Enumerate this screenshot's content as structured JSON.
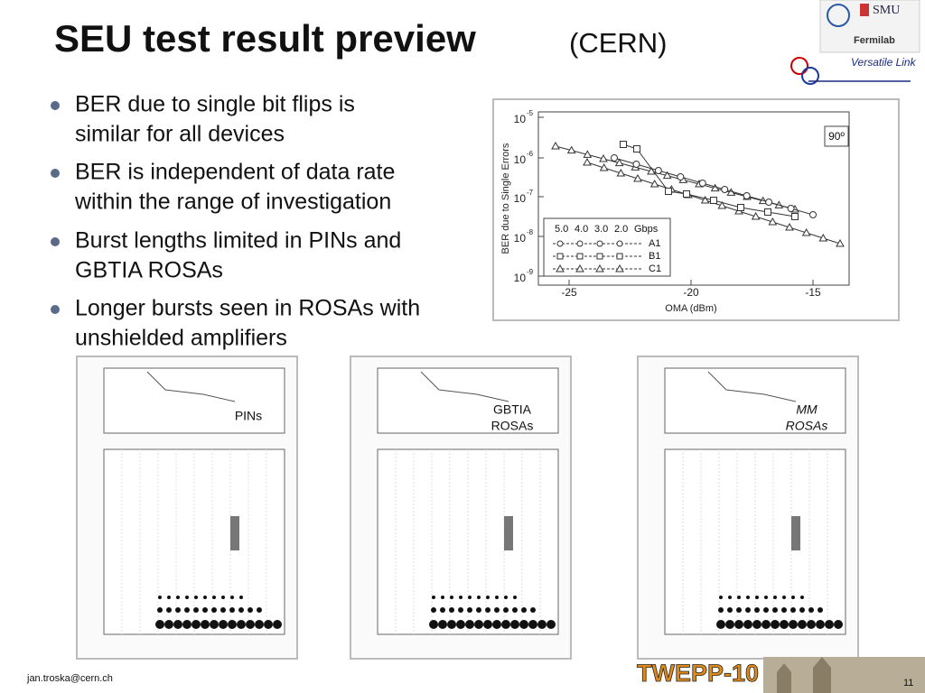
{
  "header": {
    "title": "SEU test result preview",
    "subtitle": "(CERN)",
    "logos": [
      "SMU",
      "Fermilab"
    ],
    "logo_text": "Versatile Link"
  },
  "bullets": [
    [
      "BER due to single bit flips is",
      "similar for all devices"
    ],
    [
      "BER is independent of data rate",
      "within the range of investigation"
    ],
    [
      "Burst lengths limited in PINs and",
      "GBTIA ROSAs"
    ],
    [
      "Longer bursts seen in ROSAs with",
      "unshielded amplifiers"
    ]
  ],
  "figure": {
    "angle_label": "90º",
    "x_axis_label": "OMA (dBm)",
    "y_axis_label": "BER due to Single Errors",
    "x_ticks": [
      "-25",
      "-20",
      "-15"
    ],
    "y_ticks": [
      {
        "base": "10",
        "exponent": "-5"
      },
      {
        "base": "10",
        "exponent": "-6"
      },
      {
        "base": "10",
        "exponent": "-7"
      },
      {
        "base": "10",
        "exponent": "-8"
      },
      {
        "base": "10",
        "exponent": "-9"
      }
    ],
    "legend": {
      "rates": [
        "5.0",
        "4.0",
        "3.0",
        "2.0",
        "Gbps"
      ],
      "devices": [
        "A1",
        "B1",
        "C1"
      ]
    }
  },
  "panels": [
    {
      "label": [
        "PINs"
      ]
    },
    {
      "label": [
        "GBTIA",
        "ROSAs"
      ]
    },
    {
      "label": [
        "MM",
        "ROSAs"
      ]
    }
  ],
  "footer": {
    "email": "jan.troska@cern.ch",
    "conference": "TWEPP-10",
    "page": "11"
  }
}
